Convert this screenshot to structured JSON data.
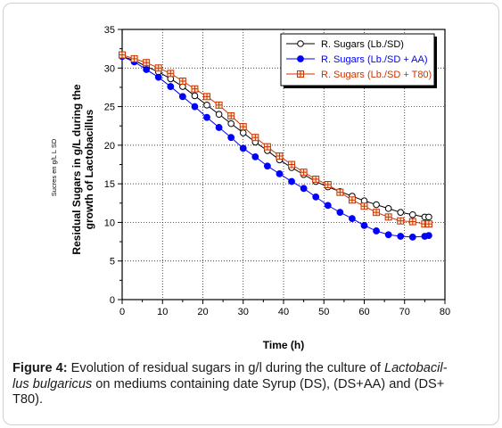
{
  "chart_data": {
    "type": "line",
    "xlabel": "Time (h)",
    "ylabel_line1": "Residual Sugars in g/L during the",
    "ylabel_line2": "growth of Lactobacillus",
    "ylabel_small": "Sucres en g/L L SD",
    "xlim": [
      0,
      80
    ],
    "ylim": [
      0,
      35
    ],
    "xticks": [
      0,
      10,
      20,
      30,
      40,
      50,
      60,
      70,
      80
    ],
    "yticks": [
      0,
      5,
      10,
      15,
      20,
      25,
      30,
      35
    ],
    "grid": "dotted",
    "legend_position": "top-right",
    "series": [
      {
        "name": "R. Sugars (Lb./SD)",
        "color": "#000000",
        "marker": "open-circle",
        "x": [
          0,
          3,
          6,
          9,
          12,
          15,
          18,
          21,
          24,
          27,
          30,
          33,
          36,
          39,
          42,
          45,
          48,
          51,
          54,
          57,
          60,
          63,
          66,
          69,
          72,
          75,
          76
        ],
        "y": [
          31.5,
          31.0,
          30.2,
          29.5,
          28.6,
          27.6,
          26.4,
          25.2,
          24.0,
          22.8,
          21.6,
          20.4,
          19.3,
          18.1,
          17.1,
          16.2,
          15.3,
          14.6,
          14.0,
          13.4,
          12.8,
          12.3,
          11.8,
          11.3,
          11.0,
          10.7,
          10.7
        ]
      },
      {
        "name": "R. Sugars (Lb./SD + AA)",
        "color": "#0000ff",
        "marker": "filled-circle",
        "x": [
          0,
          3,
          6,
          9,
          12,
          15,
          18,
          21,
          24,
          27,
          30,
          33,
          36,
          39,
          42,
          45,
          48,
          51,
          54,
          57,
          60,
          63,
          66,
          69,
          72,
          75,
          76
        ],
        "y": [
          31.5,
          30.8,
          29.8,
          28.8,
          27.6,
          26.3,
          25.0,
          23.6,
          22.3,
          21.0,
          19.6,
          18.5,
          17.3,
          16.3,
          15.3,
          14.4,
          13.3,
          12.2,
          11.3,
          10.5,
          9.6,
          8.9,
          8.4,
          8.2,
          8.1,
          8.2,
          8.3
        ]
      },
      {
        "name": "R. Sugars (Lb./SD + T80)",
        "color": "#cc3300",
        "marker": "open-square-cross",
        "x": [
          0,
          3,
          6,
          9,
          12,
          15,
          18,
          21,
          24,
          27,
          30,
          33,
          36,
          39,
          42,
          45,
          48,
          51,
          54,
          57,
          60,
          63,
          66,
          69,
          72,
          75,
          76
        ],
        "y": [
          31.7,
          31.2,
          30.7,
          30.0,
          29.3,
          28.3,
          27.3,
          26.3,
          25.2,
          23.8,
          22.4,
          21.0,
          19.8,
          18.6,
          17.5,
          16.5,
          15.6,
          14.9,
          13.9,
          12.9,
          12.1,
          11.3,
          10.7,
          10.2,
          10.1,
          9.8,
          9.8
        ]
      }
    ]
  },
  "caption": {
    "label": "Figure 4:",
    "text_1": " Evolution of residual sugars in g/l during the culture of ",
    "italic_1": "Lactobacil-",
    "italic_2": "lus bulgaricus",
    "text_2": " on mediums containing date Syrup (DS), (DS+AA) and (DS+",
    "text_3": "T80)."
  }
}
